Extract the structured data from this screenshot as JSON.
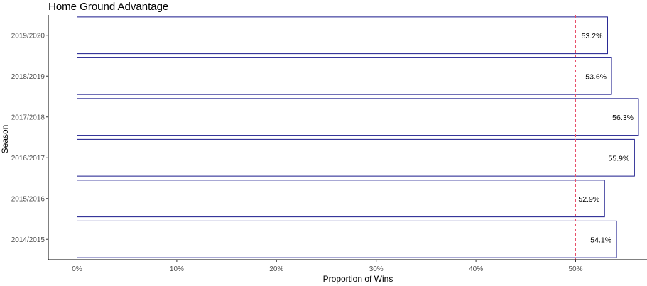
{
  "chart_data": {
    "type": "bar",
    "orientation": "horizontal",
    "title": "Home Ground Advantage",
    "xlabel": "Proportion of Wins",
    "ylabel": "Season",
    "categories": [
      "2014/2015",
      "2015/2016",
      "2016/2017",
      "2017/2018",
      "2018/2019",
      "2019/2020"
    ],
    "values": [
      0.541,
      0.529,
      0.559,
      0.563,
      0.536,
      0.532
    ],
    "value_labels": [
      "54.1%",
      "52.9%",
      "55.9%",
      "56.3%",
      "53.6%",
      "53.2%"
    ],
    "xlim": [
      0,
      0.57
    ],
    "x_ticks": [
      0,
      0.1,
      0.2,
      0.3,
      0.4,
      0.5
    ],
    "x_tick_labels": [
      "0%",
      "10%",
      "20%",
      "30%",
      "40%",
      "50%"
    ],
    "reference_line": 0.5,
    "grid": false,
    "colors": {
      "bar_outline": "#1a1a8c",
      "bar_fill": "#ffffff",
      "reference_line": "#e8506a",
      "axis": "#000000"
    }
  }
}
